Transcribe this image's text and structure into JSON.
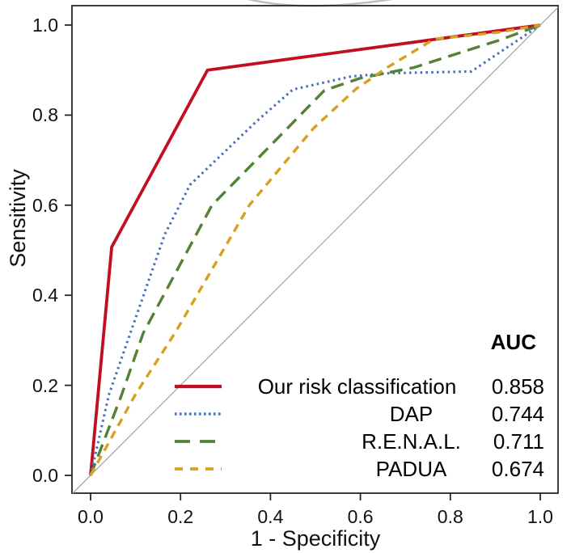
{
  "background": "#ffffff",
  "axes_color": "#262626",
  "chart_data": {
    "type": "line",
    "subtype": "roc-curves",
    "title": "",
    "xlabel": "1 - Specificity",
    "ylabel": "Sensitivity",
    "xlim": [
      0.0,
      1.0
    ],
    "ylim": [
      0.0,
      1.0
    ],
    "x_ticks": [
      "0.0",
      "0.2",
      "0.4",
      "0.6",
      "0.8",
      "1.0"
    ],
    "y_ticks": [
      "0.0",
      "0.2",
      "0.4",
      "0.6",
      "0.8",
      "1.0"
    ],
    "grid": false,
    "legend_header": "AUC",
    "legend_position": "bottom-right",
    "reference_diagonal": {
      "color": "#a9a9a9",
      "from": [
        0,
        0
      ],
      "to": [
        1,
        1
      ]
    },
    "series": [
      {
        "name": "Our risk classification",
        "auc": "0.858",
        "color": "#c10e21",
        "line_style": "solid",
        "line_width": 3.8,
        "points": [
          [
            0,
            0
          ],
          [
            0.047,
            0.507
          ],
          [
            0.26,
            0.9
          ],
          [
            1,
            1
          ]
        ]
      },
      {
        "name": "DAP",
        "auc": "0.744",
        "color": "#4a72bd",
        "line_style": "dotted",
        "line_width": 3.1,
        "points": [
          [
            0,
            0
          ],
          [
            0.041,
            0.18
          ],
          [
            0.165,
            0.535
          ],
          [
            0.221,
            0.645
          ],
          [
            0.37,
            0.787
          ],
          [
            0.45,
            0.857
          ],
          [
            0.58,
            0.886
          ],
          [
            0.66,
            0.893
          ],
          [
            0.847,
            0.897
          ],
          [
            1,
            1
          ]
        ]
      },
      {
        "name": "R.E.N.A.L.",
        "auc": "0.711",
        "color": "#538135",
        "line_style": "long-dash",
        "line_width": 3.4,
        "points": [
          [
            0,
            0
          ],
          [
            0.068,
            0.176
          ],
          [
            0.117,
            0.316
          ],
          [
            0.27,
            0.6
          ],
          [
            0.432,
            0.765
          ],
          [
            0.52,
            0.855
          ],
          [
            0.6,
            0.882
          ],
          [
            0.72,
            0.906
          ],
          [
            0.81,
            0.935
          ],
          [
            0.908,
            0.966
          ],
          [
            1,
            1
          ]
        ]
      },
      {
        "name": "PADUA",
        "auc": "0.674",
        "color": "#d7a021",
        "line_style": "short-dash",
        "line_width": 3.4,
        "points": [
          [
            0,
            0
          ],
          [
            0.1,
            0.18
          ],
          [
            0.19,
            0.32
          ],
          [
            0.353,
            0.6
          ],
          [
            0.495,
            0.77
          ],
          [
            0.59,
            0.858
          ],
          [
            0.66,
            0.906
          ],
          [
            0.764,
            0.969
          ],
          [
            0.908,
            0.984
          ],
          [
            1,
            1
          ]
        ]
      }
    ]
  }
}
